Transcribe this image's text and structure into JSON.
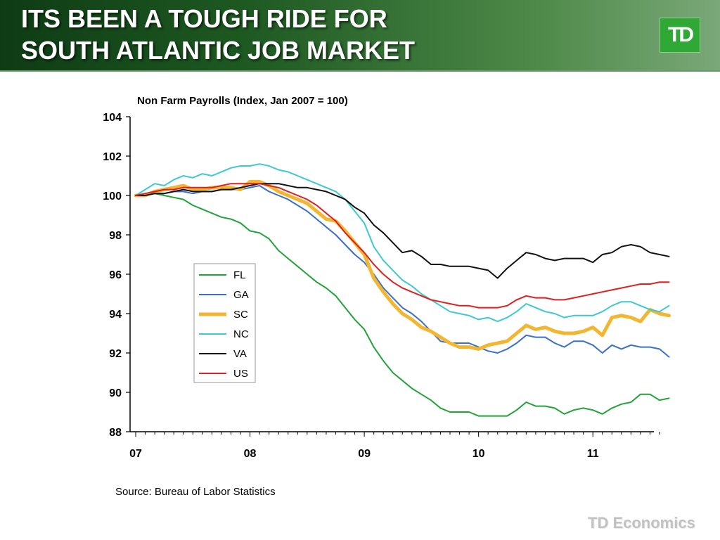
{
  "header": {
    "title_line1": "ITS BEEN A TOUGH RIDE FOR",
    "title_line2": "SOUTH ATLANTIC JOB MARKET",
    "logo_text": "TD",
    "background_color": "#1e5a22",
    "logo_color": "#2fa836"
  },
  "footer": {
    "source": "Source: Bureau of Labor Statistics",
    "brand": "TD Economics"
  },
  "chart_data": {
    "type": "line",
    "title": "Non Farm Payrolls (Index, Jan 2007 = 100)",
    "xlabel": "",
    "ylabel": "",
    "ylim": [
      88,
      104
    ],
    "yticks": [
      88,
      90,
      92,
      94,
      96,
      98,
      100,
      102,
      104
    ],
    "xlim": [
      0,
      55
    ],
    "xticks": [
      0,
      12,
      24,
      36,
      48
    ],
    "xtick_labels": [
      "07",
      "08",
      "09",
      "10",
      "11"
    ],
    "legend_placement": "center-left",
    "grid": false,
    "series": [
      {
        "name": "FL",
        "color": "#22a33a",
        "width": 2,
        "values": [
          100.0,
          100.0,
          100.1,
          100.0,
          99.9,
          99.8,
          99.5,
          99.3,
          99.1,
          98.9,
          98.8,
          98.6,
          98.2,
          98.1,
          97.8,
          97.2,
          96.8,
          96.4,
          96.0,
          95.6,
          95.3,
          94.9,
          94.3,
          93.7,
          93.2,
          92.3,
          91.6,
          91.0,
          90.6,
          90.2,
          89.9,
          89.6,
          89.2,
          89.0,
          89.0,
          89.0,
          88.8,
          88.8,
          88.8,
          88.8,
          89.1,
          89.5,
          89.3,
          89.3,
          89.2,
          88.9,
          89.1,
          89.2,
          89.1,
          88.9,
          89.2,
          89.4,
          89.5,
          89.9,
          89.9,
          89.6,
          89.7
        ]
      },
      {
        "name": "GA",
        "color": "#3a70c8",
        "width": 2,
        "values": [
          100.0,
          100.0,
          100.1,
          100.1,
          100.2,
          100.2,
          100.1,
          100.2,
          100.2,
          100.3,
          100.3,
          100.3,
          100.4,
          100.5,
          100.2,
          100.0,
          99.8,
          99.5,
          99.2,
          98.8,
          98.4,
          98.0,
          97.5,
          97.0,
          96.6,
          96.0,
          95.3,
          94.8,
          94.3,
          94.0,
          93.6,
          93.1,
          92.6,
          92.5,
          92.5,
          92.5,
          92.3,
          92.1,
          92.0,
          92.2,
          92.5,
          92.9,
          92.8,
          92.8,
          92.5,
          92.3,
          92.6,
          92.6,
          92.4,
          92.0,
          92.4,
          92.2,
          92.4,
          92.3,
          92.3,
          92.2,
          91.8
        ]
      },
      {
        "name": "SC",
        "color": "#f2b631",
        "width": 5,
        "values": [
          100.0,
          100.0,
          100.2,
          100.3,
          100.4,
          100.5,
          100.3,
          100.3,
          100.4,
          100.4,
          100.4,
          100.3,
          100.7,
          100.7,
          100.5,
          100.2,
          100.0,
          99.8,
          99.6,
          99.2,
          98.8,
          98.7,
          98.2,
          97.6,
          97.0,
          95.8,
          95.1,
          94.5,
          94.0,
          93.7,
          93.3,
          93.1,
          92.8,
          92.5,
          92.3,
          92.3,
          92.2,
          92.4,
          92.5,
          92.6,
          93.0,
          93.4,
          93.2,
          93.3,
          93.1,
          93.0,
          93.0,
          93.1,
          93.3,
          92.9,
          93.8,
          93.9,
          93.8,
          93.6,
          94.2,
          94.0,
          93.9
        ]
      },
      {
        "name": "NC",
        "color": "#3ec8cf",
        "width": 2,
        "values": [
          100.0,
          100.3,
          100.6,
          100.5,
          100.8,
          101.0,
          100.9,
          101.1,
          101.0,
          101.2,
          101.4,
          101.5,
          101.5,
          101.6,
          101.5,
          101.3,
          101.2,
          101.0,
          100.8,
          100.6,
          100.4,
          100.2,
          99.8,
          99.2,
          98.6,
          97.4,
          96.7,
          96.2,
          95.7,
          95.4,
          95.0,
          94.7,
          94.4,
          94.1,
          94.0,
          93.9,
          93.7,
          93.8,
          93.6,
          93.8,
          94.1,
          94.5,
          94.3,
          94.1,
          94.0,
          93.8,
          93.9,
          93.9,
          93.9,
          94.1,
          94.4,
          94.6,
          94.6,
          94.4,
          94.2,
          94.1,
          94.4
        ]
      },
      {
        "name": "VA",
        "color": "#111111",
        "width": 2,
        "values": [
          100.0,
          100.0,
          100.1,
          100.1,
          100.2,
          100.3,
          100.2,
          100.2,
          100.2,
          100.3,
          100.3,
          100.4,
          100.5,
          100.6,
          100.6,
          100.6,
          100.5,
          100.4,
          100.4,
          100.3,
          100.2,
          100.0,
          99.8,
          99.4,
          99.1,
          98.5,
          98.1,
          97.6,
          97.1,
          97.2,
          96.9,
          96.5,
          96.5,
          96.4,
          96.4,
          96.4,
          96.3,
          96.2,
          95.8,
          96.3,
          96.7,
          97.1,
          97.0,
          96.8,
          96.7,
          96.8,
          96.8,
          96.8,
          96.6,
          97.0,
          97.1,
          97.4,
          97.5,
          97.4,
          97.1,
          97.0,
          96.9
        ]
      },
      {
        "name": "US",
        "color": "#dd2020",
        "width": 2,
        "values": [
          100.0,
          100.1,
          100.2,
          100.3,
          100.3,
          100.4,
          100.4,
          100.4,
          100.4,
          100.5,
          100.6,
          100.6,
          100.6,
          100.6,
          100.5,
          100.4,
          100.2,
          100.0,
          99.8,
          99.5,
          99.1,
          98.7,
          98.1,
          97.6,
          97.1,
          96.5,
          96.0,
          95.6,
          95.3,
          95.1,
          94.9,
          94.7,
          94.6,
          94.5,
          94.4,
          94.4,
          94.3,
          94.3,
          94.3,
          94.4,
          94.7,
          94.9,
          94.8,
          94.8,
          94.7,
          94.7,
          94.8,
          94.9,
          95.0,
          95.1,
          95.2,
          95.3,
          95.4,
          95.5,
          95.5,
          95.6,
          95.6
        ]
      }
    ]
  }
}
